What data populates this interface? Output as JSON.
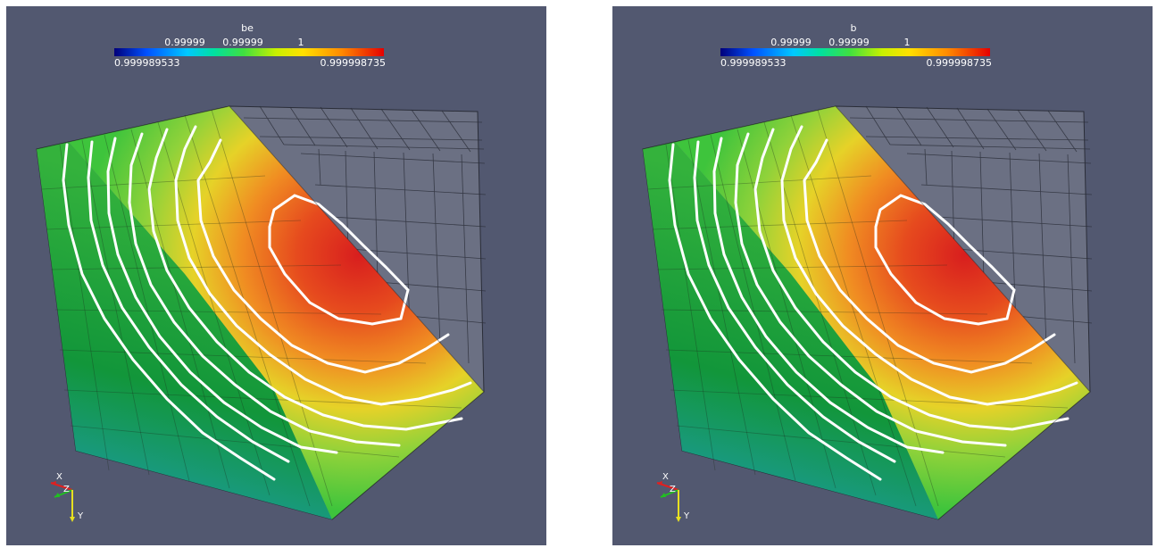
{
  "views": [
    {
      "scalar_bar": {
        "title": "be",
        "ticks": [
          "0.99999",
          "0.99999",
          "1"
        ],
        "range_min": "0.999989533",
        "range_max": "0.999998735"
      },
      "axes": {
        "x": "X",
        "y": "Y",
        "z": "Z"
      }
    },
    {
      "scalar_bar": {
        "title": "b",
        "ticks": [
          "0.99999",
          "0.99999",
          "1"
        ],
        "range_min": "0.999989533",
        "range_max": "0.999998735"
      },
      "axes": {
        "x": "X",
        "y": "Y",
        "z": "Z"
      }
    }
  ],
  "colors": {
    "background": "#525870",
    "contour": "#ffffff",
    "colormap": [
      "#00007a",
      "#00c8ff",
      "#40e040",
      "#ffe000",
      "#e60000"
    ]
  }
}
